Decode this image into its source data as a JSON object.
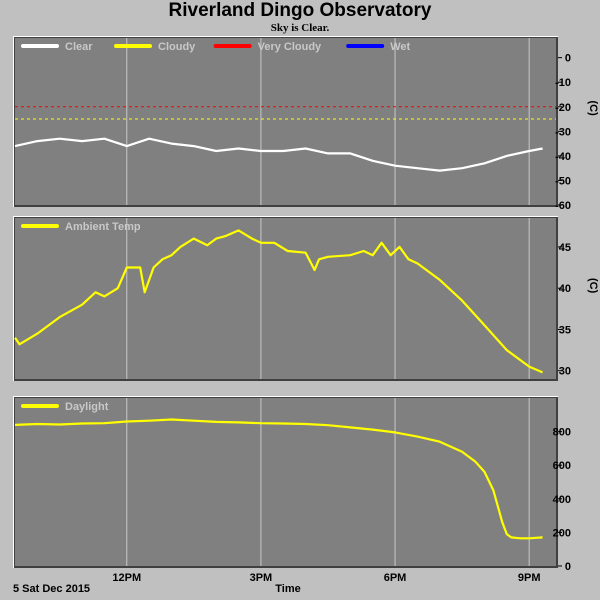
{
  "title": "Riverland Dingo Observatory",
  "subtitle": "Sky is Clear.",
  "footer": {
    "date": "5 Sat Dec 2015",
    "xlabel": "Time"
  },
  "chart_data": [
    {
      "type": "line",
      "unit": "(C)",
      "ylim": [
        -60,
        8
      ],
      "yticks": [
        0,
        -10,
        -20,
        -30,
        -40,
        -50,
        -60
      ],
      "xlim": [
        9.5,
        21.6
      ],
      "xticks": [
        {
          "value": 12,
          "label": "12PM"
        },
        {
          "value": 15,
          "label": "3PM"
        },
        {
          "value": 18,
          "label": "6PM"
        },
        {
          "value": 21,
          "label": "9PM"
        }
      ],
      "grid": true,
      "legend": [
        {
          "label": "Clear",
          "color": "#ffffff"
        },
        {
          "label": "Cloudy",
          "color": "#ffff00"
        },
        {
          "label": "Very Cloudy",
          "color": "#ff0000"
        },
        {
          "label": "Wet",
          "color": "#0000ff"
        }
      ],
      "thresholds": [
        {
          "value": -20,
          "color": "#ff0000"
        },
        {
          "value": -25,
          "color": "#ffff00"
        }
      ],
      "series": [
        {
          "color": "#ffffff",
          "x": [
            9.5,
            10.0,
            10.5,
            11.0,
            11.5,
            12.0,
            12.5,
            13.0,
            13.5,
            14.0,
            14.5,
            15.0,
            15.5,
            16.0,
            16.5,
            17.0,
            17.5,
            18.0,
            18.5,
            19.0,
            19.5,
            20.0,
            20.5,
            21.0,
            21.3
          ],
          "y": [
            -36,
            -34,
            -33,
            -34,
            -33,
            -36,
            -33,
            -35,
            -36,
            -38,
            -37,
            -38,
            -38,
            -37,
            -39,
            -39,
            -42,
            -44,
            -45,
            -46,
            -45,
            -43,
            -40,
            -38,
            -37
          ]
        }
      ]
    },
    {
      "type": "line",
      "unit": "(C)",
      "ylim": [
        29,
        48.5
      ],
      "yticks": [
        45,
        40,
        35,
        30
      ],
      "xlim": [
        9.5,
        21.6
      ],
      "xticks": [
        {
          "value": 12,
          "label": "12PM"
        },
        {
          "value": 15,
          "label": "3PM"
        },
        {
          "value": 18,
          "label": "6PM"
        },
        {
          "value": 21,
          "label": "9PM"
        }
      ],
      "grid": true,
      "legend": [
        {
          "label": "Ambient Temp",
          "color": "#ffff00"
        }
      ],
      "series": [
        {
          "color": "#ffff00",
          "x": [
            9.5,
            9.6,
            10.0,
            10.5,
            11.0,
            11.3,
            11.5,
            11.8,
            12.0,
            12.3,
            12.4,
            12.6,
            12.8,
            13.0,
            13.2,
            13.5,
            13.8,
            14.0,
            14.2,
            14.5,
            14.8,
            15.0,
            15.3,
            15.6,
            16.0,
            16.2,
            16.3,
            16.5,
            17.0,
            17.3,
            17.5,
            17.7,
            17.9,
            18.1,
            18.3,
            18.5,
            19.0,
            19.5,
            20.0,
            20.5,
            21.0,
            21.3
          ],
          "y": [
            34.0,
            33.2,
            34.5,
            36.5,
            38.0,
            39.5,
            39.0,
            40.0,
            42.5,
            42.5,
            39.5,
            42.5,
            43.5,
            44.0,
            45.0,
            46.0,
            45.2,
            46.0,
            46.3,
            47.0,
            46.0,
            45.5,
            45.5,
            44.5,
            44.3,
            42.2,
            43.5,
            43.8,
            44.0,
            44.5,
            44.0,
            45.5,
            44.0,
            45.0,
            43.5,
            43.0,
            41.0,
            38.5,
            35.5,
            32.5,
            30.5,
            29.8
          ]
        }
      ]
    },
    {
      "type": "line",
      "unit": "",
      "ylim": [
        0,
        1000
      ],
      "yticks": [
        800,
        600,
        400,
        200,
        0
      ],
      "xlim": [
        9.5,
        21.6
      ],
      "xticks": [
        {
          "value": 12,
          "label": "12PM"
        },
        {
          "value": 15,
          "label": "3PM"
        },
        {
          "value": 18,
          "label": "6PM"
        },
        {
          "value": 21,
          "label": "9PM"
        }
      ],
      "grid": true,
      "legend": [
        {
          "label": "Daylight",
          "color": "#ffff00"
        }
      ],
      "series": [
        {
          "color": "#ffff00",
          "x": [
            9.5,
            10.0,
            10.5,
            11.0,
            11.5,
            12.0,
            12.5,
            13.0,
            13.5,
            14.0,
            14.5,
            15.0,
            15.5,
            16.0,
            16.5,
            17.0,
            17.5,
            18.0,
            18.5,
            19.0,
            19.5,
            19.8,
            20.0,
            20.2,
            20.4,
            20.5,
            20.6,
            20.8,
            21.0,
            21.3
          ],
          "y": [
            840,
            845,
            842,
            848,
            850,
            860,
            865,
            872,
            865,
            858,
            855,
            850,
            848,
            845,
            838,
            825,
            812,
            795,
            770,
            740,
            680,
            620,
            560,
            450,
            260,
            190,
            170,
            165,
            165,
            170
          ]
        }
      ]
    }
  ]
}
